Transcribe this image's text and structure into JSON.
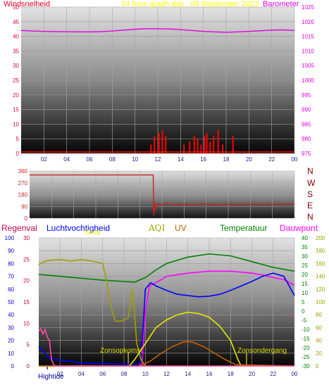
{
  "header": {
    "left_label": "Windsnelheid",
    "title": "24 hour graph day : 09 September 2023",
    "right_label": "Barometer"
  },
  "wind_dir_labels": [
    "N",
    "W",
    "S",
    "E",
    "N"
  ],
  "legend": {
    "regenval": "Regenval",
    "luchtvochtigheid": "Luchtvochtigheid",
    "solar": "Solar",
    "aqi": "AQI",
    "uv": "UV",
    "temperatuur": "Temperatuur",
    "dauwpunt": "Dauwpunt"
  },
  "annotations": {
    "sunrise": "Zonsopkomst",
    "sunset": "Zonsondergang",
    "hightide": "Hightide"
  },
  "colors": {
    "windspeed_label": "#e8002a",
    "title": "#ffff00",
    "barometer": "#e000e0",
    "wind": "#ff0000",
    "wind_dir": "#cc2020",
    "regenval": "#c00050",
    "humidity": "#0000ff",
    "solar": "#e8e800",
    "aqi": "#a0a000",
    "uv": "#c06000",
    "temperature": "#008000",
    "dewpoint": "#ff00ff",
    "rain_pink": "#ff4aa8",
    "annotation": "#dddd00",
    "hightide": "#00008b"
  },
  "chart_data": [
    {
      "type": "bar+line",
      "name_ref": "wind-barometer",
      "x_ticks": [
        "02",
        "04",
        "06",
        "08",
        "10",
        "12",
        "14",
        "16",
        "18",
        "20",
        "22",
        "00"
      ],
      "x_range": [
        0,
        24
      ],
      "left_axis": {
        "ticks": [
          "0",
          "5",
          "10",
          "15",
          "20",
          "25",
          "30",
          "35",
          "40",
          "45",
          "50"
        ],
        "range": [
          0,
          50
        ]
      },
      "right_axis": {
        "ticks": [
          "975",
          "980",
          "985",
          "990",
          "995",
          "1000",
          "1005",
          "1010",
          "1015",
          "1020",
          "1025"
        ],
        "range": [
          975,
          1025
        ]
      },
      "barometer": {
        "x": [
          0,
          1,
          2,
          3,
          4,
          5,
          6,
          7,
          8,
          9,
          10,
          11,
          12,
          13,
          14,
          15,
          16,
          17,
          18,
          19,
          20,
          21,
          22,
          23,
          24
        ],
        "y": [
          1017.0,
          1016.8,
          1016.7,
          1016.6,
          1016.6,
          1016.5,
          1016.5,
          1016.6,
          1016.8,
          1017.1,
          1017.4,
          1017.6,
          1017.6,
          1017.5,
          1017.3,
          1017.0,
          1016.7,
          1016.5,
          1016.4,
          1016.5,
          1016.7,
          1016.9,
          1017.1,
          1017.2,
          1017.0
        ]
      },
      "wind_gusts": {
        "x": [
          11.4,
          11.7,
          12.1,
          12.4,
          12.7,
          14.3,
          14.8,
          15.2,
          15.5,
          15.8,
          16.1,
          16.3,
          16.6,
          16.9,
          17.3,
          17.7,
          18.6
        ],
        "y": [
          3,
          6,
          7,
          8,
          6,
          3,
          4,
          6,
          5,
          3,
          6,
          7,
          4,
          6,
          8,
          3,
          6
        ]
      },
      "wind_avg": {
        "x": [
          0,
          24
        ],
        "y": [
          0.5,
          0.5
        ]
      }
    },
    {
      "type": "line",
      "name_ref": "wind-direction",
      "y_ticks": [
        "0",
        "90",
        "180",
        "270",
        "360"
      ],
      "y_range": [
        0,
        360
      ],
      "x_range": [
        0,
        24
      ],
      "x": [
        0,
        11.2,
        11.25,
        11.3,
        11.35,
        11.5,
        12,
        12.5,
        13,
        14,
        15,
        16,
        17,
        18,
        20,
        22,
        24
      ],
      "y": [
        330,
        330,
        20,
        120,
        60,
        110,
        100,
        115,
        100,
        108,
        103,
        110,
        104,
        106,
        107,
        108,
        110
      ]
    },
    {
      "type": "line",
      "name_ref": "multi",
      "x_ticks": [
        "02",
        "04",
        "06",
        "08",
        "10",
        "12",
        "14",
        "16",
        "18",
        "20",
        "22",
        "00"
      ],
      "x_range": [
        0,
        24
      ],
      "axes": {
        "regenval": {
          "ticks": [
            "0",
            "10",
            "20",
            "30",
            "40",
            "50",
            "60",
            "70",
            "80",
            "90",
            "100"
          ],
          "range": [
            0,
            100
          ]
        },
        "humidity": {
          "ticks": [
            "0",
            "5",
            "10",
            "15",
            "20",
            "25",
            "30"
          ],
          "range": [
            0,
            30
          ]
        },
        "temperature": {
          "ticks": [
            "-30",
            "-25",
            "-20",
            "-15",
            "-10",
            "-5",
            "0",
            "5",
            "10",
            "15",
            "20",
            "25",
            "30",
            "35",
            "40"
          ],
          "range": [
            -30,
            40
          ]
        },
        "dewpoint": {
          "ticks": [
            "0",
            "20",
            "40",
            "60",
            "80",
            "100",
            "120",
            "140",
            "160",
            "180",
            "200"
          ],
          "range": [
            0,
            200
          ]
        }
      },
      "series": [
        {
          "name": "Temperatuur",
          "key": "temperature",
          "axis": "dewpoint",
          "x": [
            0,
            2,
            4,
            6,
            8,
            9,
            10,
            11,
            12,
            14,
            16,
            18,
            20,
            22,
            24
          ],
          "y": [
            143,
            140,
            137,
            134,
            132,
            131,
            138,
            150,
            160,
            170,
            175,
            172,
            163,
            154,
            148
          ]
        },
        {
          "name": "Dauwpunt",
          "key": "dewpoint",
          "axis": "dewpoint",
          "x": [
            0,
            9.4,
            9.7,
            10,
            10.4,
            11,
            12,
            14,
            16,
            18,
            20,
            21,
            22,
            23,
            24
          ],
          "y": [
            0,
            0,
            5,
            85,
            125,
            130,
            140,
            145,
            148,
            148,
            145,
            142,
            138,
            135,
            126
          ]
        },
        {
          "name": "Luchtvochtigheid",
          "key": "humidity",
          "axis": "dewpoint",
          "x": [
            0,
            1,
            2,
            4,
            6,
            8,
            9,
            9.5,
            9.8,
            10,
            10.5,
            11,
            12,
            13,
            14,
            15,
            16,
            17,
            18,
            19,
            20,
            21,
            22,
            23,
            24
          ],
          "y": [
            30,
            12,
            9,
            5,
            4,
            3,
            3,
            4,
            60,
            120,
            130,
            125,
            118,
            112,
            110,
            108,
            109,
            112,
            118,
            125,
            132,
            140,
            145,
            140,
            110
          ]
        },
        {
          "name": "AQI",
          "key": "aqi",
          "axis": "dewpoint",
          "x": [
            0,
            0.5,
            1,
            2,
            3,
            4,
            5,
            6,
            6.4,
            6.8,
            7.2,
            7.6,
            8,
            8.4,
            8.8,
            9.2,
            9.6,
            10
          ],
          "y": [
            158,
            163,
            165,
            166,
            164,
            166,
            164,
            160,
            130,
            90,
            70,
            70,
            72,
            75,
            120,
            35,
            10,
            0
          ]
        },
        {
          "name": "Solar",
          "key": "solar",
          "axis": "dewpoint",
          "x": [
            0,
            8.5,
            9,
            10,
            11,
            12,
            13,
            14,
            15,
            16,
            17,
            18,
            18.7,
            19,
            24
          ],
          "y": [
            0,
            0,
            10,
            35,
            60,
            72,
            80,
            84,
            82,
            76,
            62,
            40,
            10,
            0,
            0
          ]
        },
        {
          "name": "UV",
          "key": "uv",
          "axis": "dewpoint",
          "x": [
            0,
            9.5,
            10.5,
            11.5,
            12.5,
            13.5,
            14,
            14.5,
            15.5,
            16.5,
            17.5,
            18.5,
            24
          ],
          "y": [
            0,
            0,
            8,
            20,
            30,
            37,
            38,
            37,
            30,
            20,
            10,
            2,
            0
          ]
        },
        {
          "name": "Regenval",
          "key": "regenval",
          "axis": "dewpoint",
          "x": [
            0,
            0.2,
            0.4,
            0.6,
            0.8,
            1,
            1.2,
            1.4,
            1.6,
            24
          ],
          "y": [
            55,
            58,
            50,
            57,
            45,
            40,
            10,
            2,
            0,
            0
          ]
        }
      ],
      "markers": {
        "sunrise_x": 8.4,
        "sunset_x": 19.5,
        "hightide_x": 0.8
      }
    }
  ]
}
